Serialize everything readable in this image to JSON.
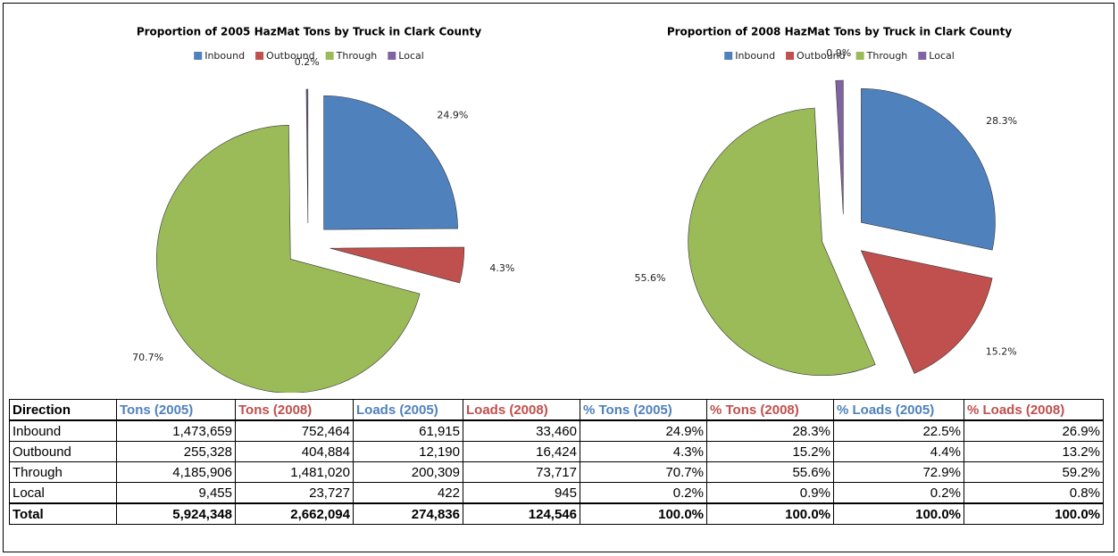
{
  "chart_data": [
    {
      "type": "pie",
      "title": "Proportion of 2005  HazMat Tons by Truck in Clark County",
      "categories": [
        "Inbound",
        "Outbound",
        "Through",
        "Local"
      ],
      "values": [
        24.9,
        4.3,
        70.7,
        0.2
      ],
      "value_labels": [
        "24.9%",
        "4.3%",
        "70.7%",
        "0.2%"
      ],
      "colors": [
        "#4f81bd",
        "#c0504d",
        "#9bbb59",
        "#8064a2"
      ],
      "legend": "top"
    },
    {
      "type": "pie",
      "title": "Proportion of 2008  HazMat Tons by Truck in Clark County",
      "categories": [
        "Inbound",
        "Outbound",
        "Through",
        "Local"
      ],
      "values": [
        28.3,
        15.2,
        55.6,
        0.9
      ],
      "value_labels": [
        "28.3%",
        "15.2%",
        "55.6%",
        "0.9%"
      ],
      "colors": [
        "#4f81bd",
        "#c0504d",
        "#9bbb59",
        "#8064a2"
      ],
      "legend": "top"
    }
  ],
  "table": {
    "header": [
      "Direction",
      "Tons (2005)",
      "Tons (2008)",
      "Loads (2005)",
      "Loads (2008)",
      "% Tons (2005)",
      "% Tons (2008)",
      "% Loads (2005)",
      "% Loads (2008)"
    ],
    "rows": [
      [
        "Inbound",
        "1,473,659",
        "752,464",
        "61,915",
        "33,460",
        "24.9%",
        "28.3%",
        "22.5%",
        "26.9%"
      ],
      [
        "Outbound",
        "255,328",
        "404,884",
        "12,190",
        "16,424",
        "4.3%",
        "15.2%",
        "4.4%",
        "13.2%"
      ],
      [
        "Through",
        "4,185,906",
        "1,481,020",
        "200,309",
        "73,717",
        "70.7%",
        "55.6%",
        "72.9%",
        "59.2%"
      ],
      [
        "Local",
        "9,455",
        "23,727",
        "422",
        "945",
        "0.2%",
        "0.9%",
        "0.2%",
        "0.8%"
      ],
      [
        "Total",
        "5,924,348",
        "2,662,094",
        "274,836",
        "124,546",
        "100.0%",
        "100.0%",
        "100.0%",
        "100.0%"
      ]
    ]
  }
}
